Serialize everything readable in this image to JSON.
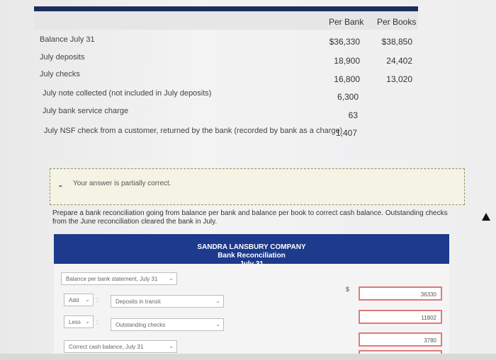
{
  "table": {
    "headers": {
      "bank": "Per Bank",
      "books": "Per Books"
    },
    "rows": [
      {
        "label": "Balance July 31",
        "bank": "$36,330",
        "books": "$38,850"
      },
      {
        "label": "July deposits",
        "bank": "18,900",
        "books": "24,402"
      },
      {
        "label": "July checks",
        "bank": "16,800",
        "books": "13,020"
      },
      {
        "label": "July note collected (not included in July deposits)",
        "bank": "6,300",
        "books": ""
      },
      {
        "label": "July bank service charge",
        "bank": "63",
        "books": ""
      },
      {
        "label": "July NSF check from a customer, returned by the bank (recorded by bank as a charge)",
        "bank": "1,407",
        "books": ""
      }
    ]
  },
  "notice": {
    "dash": "-",
    "text": "Your answer is partially correct."
  },
  "prompt": "Prepare a bank reconciliation going from balance per bank and balance per book to correct cash balance. Outstanding checks from the June reconciliation cleared the bank in July.",
  "statement": {
    "company": "SANDRA LANSBURY COMPANY",
    "title": "Bank Reconciliation",
    "date": "July 31"
  },
  "form": {
    "balance_select": "Balance per bank statement, July 31",
    "add_select": "Add",
    "deposits_select": "Deposits in transit",
    "less_select": "Less",
    "outstanding_select": "Outstanding checks",
    "correct_select": "Correct cash balance, July 31",
    "colon": ":",
    "dollar": "$",
    "balance_value": "36330",
    "deposits_value": "11802",
    "outstanding_value": "3780"
  }
}
